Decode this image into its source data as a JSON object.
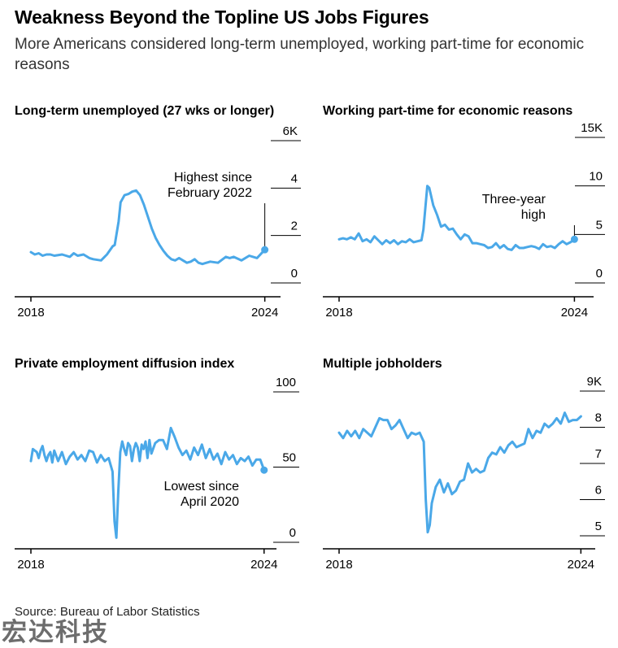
{
  "title": "Weakness Beyond the Topline US Jobs Figures",
  "subtitle": "More Americans considered long-term unemployed, working part-time for economic reasons",
  "source": "Source: Bureau of Labor Statistics",
  "watermark": "宏达科技",
  "colors": {
    "line": "#4aa8e8",
    "axis": "#000000",
    "text": "#000000"
  },
  "chart_data": [
    {
      "type": "line",
      "title": "Long-term unemployed (27 wks or longer)",
      "x_ticks": [
        "2018",
        "2024"
      ],
      "x_range": [
        2018.0,
        2024.8
      ],
      "y_ticks": [
        0,
        2,
        4,
        6
      ],
      "y_tick_labels": [
        "0",
        "2",
        "4",
        "6K"
      ],
      "ylim": [
        0,
        6
      ],
      "annotation": {
        "lines": [
          "Highest since",
          "February 2022"
        ],
        "x": 2024.0,
        "y": 1.4
      },
      "series": [
        {
          "x": [
            2018.0,
            2018.1,
            2018.2,
            2018.3,
            2018.4,
            2018.5,
            2018.6,
            2018.8,
            2019.0,
            2019.1,
            2019.2,
            2019.35,
            2019.5,
            2019.6,
            2019.8,
            2019.95,
            2020.1,
            2020.15,
            2020.25,
            2020.3,
            2020.4,
            2020.5,
            2020.6,
            2020.7,
            2020.8,
            2020.9,
            2021.0,
            2021.1,
            2021.2,
            2021.3,
            2021.4,
            2021.5,
            2021.6,
            2021.7,
            2021.8,
            2021.9,
            2022.0,
            2022.1,
            2022.2,
            2022.3,
            2022.4,
            2022.6,
            2022.8,
            2023.0,
            2023.1,
            2023.2,
            2023.4,
            2023.6,
            2023.8,
            2024.0
          ],
          "values": [
            1.3,
            1.2,
            1.25,
            1.15,
            1.2,
            1.2,
            1.15,
            1.2,
            1.1,
            1.25,
            1.15,
            1.2,
            1.05,
            1.0,
            0.95,
            1.2,
            1.55,
            1.6,
            2.6,
            3.4,
            3.7,
            3.75,
            3.85,
            3.9,
            3.7,
            3.3,
            2.8,
            2.3,
            1.9,
            1.6,
            1.35,
            1.15,
            1.0,
            0.95,
            1.05,
            0.95,
            0.85,
            0.9,
            1.0,
            0.85,
            0.8,
            0.9,
            0.85,
            1.1,
            1.05,
            1.1,
            0.95,
            1.15,
            1.05,
            1.4
          ]
        }
      ]
    },
    {
      "type": "line",
      "title": "Working part-time for economic reasons",
      "x_ticks": [
        "2018",
        "2024"
      ],
      "x_range": [
        2018.0,
        2024.8
      ],
      "y_ticks": [
        0,
        5,
        10,
        15
      ],
      "y_tick_labels": [
        "0",
        "5",
        "10",
        "15K"
      ],
      "ylim": [
        0,
        15
      ],
      "annotation": {
        "lines": [
          "Three-year",
          "high"
        ],
        "x": 2024.0,
        "y": 4.5
      },
      "series": [
        {
          "x": [
            2018.0,
            2018.1,
            2018.2,
            2018.3,
            2018.4,
            2018.5,
            2018.6,
            2018.7,
            2018.8,
            2018.9,
            2019.0,
            2019.1,
            2019.2,
            2019.3,
            2019.4,
            2019.5,
            2019.6,
            2019.7,
            2019.8,
            2019.9,
            2020.0,
            2020.1,
            2020.15,
            2020.25,
            2020.3,
            2020.4,
            2020.5,
            2020.6,
            2020.7,
            2020.8,
            2020.9,
            2021.0,
            2021.1,
            2021.2,
            2021.3,
            2021.4,
            2021.5,
            2021.6,
            2021.7,
            2021.8,
            2021.9,
            2022.0,
            2022.1,
            2022.2,
            2022.3,
            2022.4,
            2022.5,
            2022.6,
            2022.7,
            2022.8,
            2022.9,
            2023.0,
            2023.1,
            2023.2,
            2023.3,
            2023.4,
            2023.5,
            2023.6,
            2023.7,
            2023.8,
            2023.9,
            2024.0
          ],
          "values": [
            4.5,
            4.6,
            4.5,
            4.7,
            4.5,
            5.1,
            4.3,
            4.5,
            4.2,
            4.8,
            4.4,
            4.0,
            4.4,
            4.1,
            4.4,
            4.0,
            4.3,
            4.2,
            4.5,
            4.2,
            4.3,
            4.4,
            5.5,
            10.0,
            9.8,
            8.0,
            7.0,
            5.8,
            6.0,
            5.5,
            5.6,
            5.0,
            4.5,
            5.0,
            4.8,
            4.1,
            4.1,
            4.0,
            3.9,
            3.6,
            3.7,
            4.1,
            3.6,
            3.9,
            3.5,
            3.4,
            3.9,
            3.6,
            3.6,
            3.7,
            3.8,
            3.7,
            3.5,
            4.0,
            3.7,
            3.8,
            3.6,
            4.0,
            4.3,
            4.0,
            4.2,
            4.5
          ]
        }
      ]
    },
    {
      "type": "line",
      "title": "Private employment diffusion index",
      "x_ticks": [
        "2018",
        "2024"
      ],
      "x_range": [
        2018.0,
        2024.8
      ],
      "y_ticks": [
        0,
        50,
        100
      ],
      "y_tick_labels": [
        "0",
        "50",
        "100"
      ],
      "ylim": [
        0,
        100
      ],
      "annotation": {
        "lines": [
          "Lowest since",
          "April 2020"
        ],
        "x": 2024.0,
        "y": 48
      },
      "series": [
        {
          "x": [
            2018.0,
            2018.05,
            2018.1,
            2018.15,
            2018.2,
            2018.25,
            2018.3,
            2018.35,
            2018.4,
            2018.45,
            2018.5,
            2018.55,
            2018.6,
            2018.7,
            2018.8,
            2018.9,
            2019.0,
            2019.1,
            2019.2,
            2019.3,
            2019.4,
            2019.5,
            2019.6,
            2019.7,
            2019.8,
            2019.9,
            2020.0,
            2020.1,
            2020.15,
            2020.2,
            2020.25,
            2020.3,
            2020.35,
            2020.4,
            2020.45,
            2020.5,
            2020.55,
            2020.6,
            2020.65,
            2020.7,
            2020.75,
            2020.8,
            2020.85,
            2020.9,
            2020.95,
            2021.0,
            2021.05,
            2021.1,
            2021.2,
            2021.3,
            2021.4,
            2021.5,
            2021.6,
            2021.7,
            2021.8,
            2021.9,
            2022.0,
            2022.1,
            2022.2,
            2022.3,
            2022.4,
            2022.5,
            2022.6,
            2022.7,
            2022.8,
            2022.9,
            2023.0,
            2023.1,
            2023.2,
            2023.3,
            2023.4,
            2023.5,
            2023.6,
            2023.7,
            2023.8,
            2023.9,
            2024.0
          ],
          "values": [
            54,
            62,
            61,
            60,
            56,
            61,
            64,
            58,
            54,
            58,
            60,
            53,
            61,
            54,
            60,
            52,
            57,
            60,
            55,
            58,
            54,
            61,
            60,
            53,
            58,
            54,
            56,
            47,
            14,
            3,
            34,
            60,
            67,
            62,
            58,
            66,
            64,
            54,
            62,
            66,
            63,
            54,
            65,
            62,
            67,
            56,
            68,
            59,
            66,
            68,
            68,
            62,
            76,
            70,
            63,
            58,
            61,
            55,
            63,
            58,
            65,
            56,
            62,
            55,
            59,
            52,
            60,
            55,
            58,
            52,
            56,
            54,
            57,
            51,
            55,
            55,
            48
          ]
        }
      ]
    },
    {
      "type": "line",
      "title": "Multiple jobholders",
      "x_ticks": [
        "2018",
        "2024"
      ],
      "x_range": [
        2018.0,
        2024.8
      ],
      "y_ticks": [
        5,
        6,
        7,
        8,
        9
      ],
      "y_tick_labels": [
        "5",
        "6",
        "7",
        "8",
        "9K"
      ],
      "ylim": [
        5,
        9
      ],
      "annotation": null,
      "series": [
        {
          "x": [
            2018.0,
            2018.1,
            2018.2,
            2018.3,
            2018.4,
            2018.5,
            2018.6,
            2018.7,
            2018.8,
            2018.9,
            2019.0,
            2019.1,
            2019.2,
            2019.3,
            2019.4,
            2019.5,
            2019.6,
            2019.7,
            2019.8,
            2019.9,
            2020.0,
            2020.1,
            2020.15,
            2020.2,
            2020.25,
            2020.3,
            2020.4,
            2020.5,
            2020.6,
            2020.7,
            2020.8,
            2020.9,
            2021.0,
            2021.1,
            2021.2,
            2021.3,
            2021.4,
            2021.5,
            2021.6,
            2021.7,
            2021.8,
            2021.9,
            2022.0,
            2022.1,
            2022.2,
            2022.3,
            2022.4,
            2022.5,
            2022.6,
            2022.7,
            2022.8,
            2022.9,
            2023.0,
            2023.1,
            2023.2,
            2023.3,
            2023.4,
            2023.5,
            2023.6,
            2023.7,
            2023.8,
            2023.9,
            2024.0
          ],
          "values": [
            7.85,
            7.7,
            7.9,
            7.75,
            7.9,
            7.7,
            7.95,
            7.85,
            7.75,
            8.0,
            8.25,
            8.2,
            8.2,
            7.95,
            8.05,
            8.2,
            7.95,
            7.7,
            7.85,
            7.8,
            7.85,
            7.6,
            6.0,
            5.1,
            5.3,
            5.9,
            6.35,
            6.55,
            6.2,
            6.45,
            6.15,
            6.25,
            6.5,
            6.55,
            7.0,
            6.75,
            6.85,
            6.75,
            6.8,
            7.15,
            7.3,
            7.25,
            7.45,
            7.3,
            7.5,
            7.6,
            7.45,
            7.5,
            7.55,
            7.95,
            7.7,
            7.9,
            7.85,
            8.1,
            8.0,
            8.1,
            8.25,
            8.1,
            8.4,
            8.15,
            8.2,
            8.2,
            8.3
          ]
        }
      ]
    }
  ]
}
